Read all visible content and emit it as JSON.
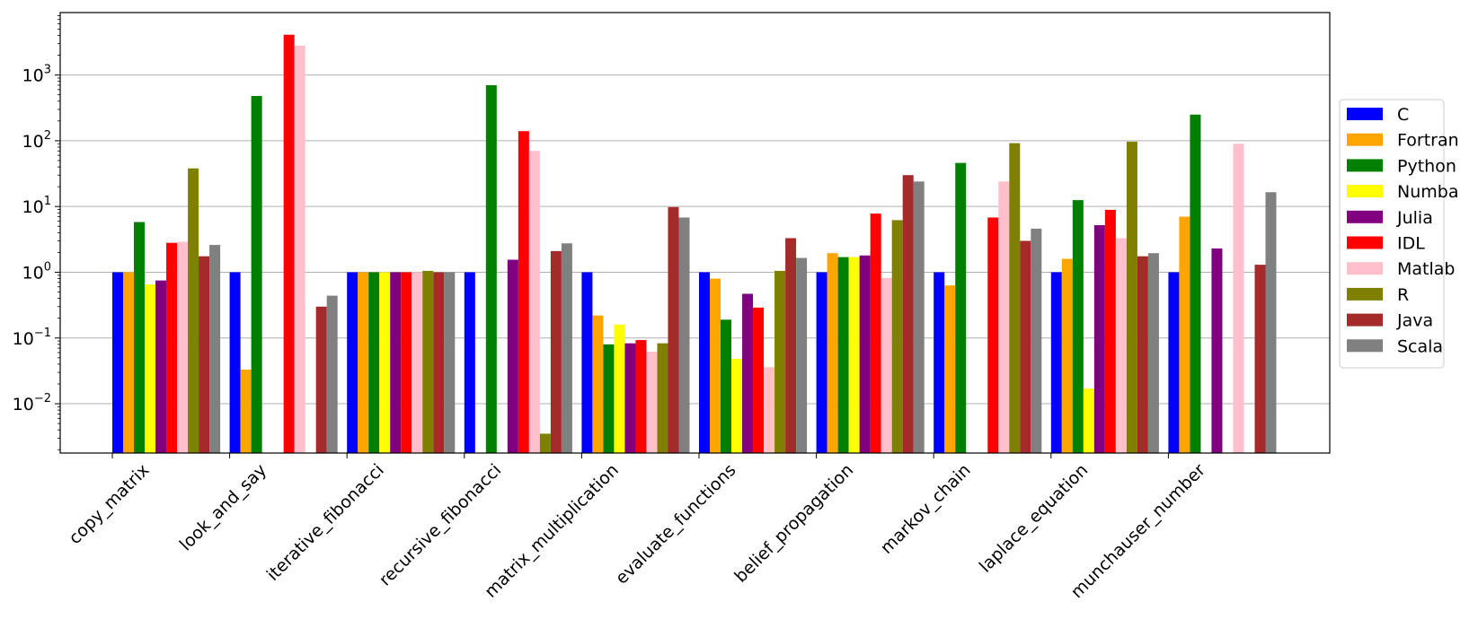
{
  "chart_data": {
    "type": "bar",
    "yscale": "log",
    "ylim_exponents": [
      -2.75,
      3.95
    ],
    "ytick_base": "10",
    "yticks": [
      {
        "base": "10",
        "exp": "−2",
        "value": 0.01
      },
      {
        "base": "10",
        "exp": "−1",
        "value": 0.1
      },
      {
        "base": "10",
        "exp": "0",
        "value": 1
      },
      {
        "base": "10",
        "exp": "1",
        "value": 10
      },
      {
        "base": "10",
        "exp": "2",
        "value": 100
      },
      {
        "base": "10",
        "exp": "3",
        "value": 1000
      }
    ],
    "grid": "horizontal major gridlines",
    "legend_position": "right, outside plot",
    "categories": [
      "copy_matrix",
      "look_and_say",
      "iterative_fibonacci",
      "recursive_fibonacci",
      "matrix_multiplication",
      "evaluate_functions",
      "belief_propagation",
      "markov_chain",
      "laplace_equation",
      "munchauser_number"
    ],
    "series": [
      {
        "name": "C",
        "color": "#0000ff",
        "values": [
          1,
          1,
          1,
          1,
          1,
          1,
          1,
          1,
          1,
          1
        ]
      },
      {
        "name": "Fortran",
        "color": "#ffa500",
        "values": [
          1.0,
          0.033,
          1.0,
          null,
          0.22,
          0.8,
          1.95,
          0.63,
          1.6,
          7.0
        ]
      },
      {
        "name": "Python",
        "color": "#008000",
        "values": [
          5.8,
          480,
          1.0,
          700,
          0.08,
          0.19,
          1.7,
          46,
          12.5,
          250
        ]
      },
      {
        "name": "Numba",
        "color": "#ffff00",
        "values": [
          0.65,
          null,
          1.0,
          null,
          0.16,
          0.048,
          1.7,
          null,
          0.017,
          null
        ]
      },
      {
        "name": "Julia",
        "color": "#800080",
        "values": [
          0.75,
          null,
          1.0,
          1.55,
          0.083,
          0.47,
          1.8,
          null,
          5.2,
          2.3
        ]
      },
      {
        "name": "IDL",
        "color": "#ff0000",
        "values": [
          2.8,
          4100,
          1.0,
          140,
          0.093,
          0.29,
          7.8,
          6.8,
          8.9,
          null
        ]
      },
      {
        "name": "Matlab",
        "color": "#ffc0cb",
        "values": [
          2.9,
          2800,
          1.0,
          70,
          0.062,
          0.036,
          0.82,
          24,
          3.3,
          90
        ]
      },
      {
        "name": "R",
        "color": "#808000",
        "values": [
          38,
          null,
          1.05,
          0.0035,
          0.083,
          1.05,
          6.2,
          92,
          97,
          null
        ]
      },
      {
        "name": "Java",
        "color": "#a52a2a",
        "values": [
          1.75,
          0.3,
          1.0,
          2.1,
          9.8,
          3.3,
          30,
          3.0,
          1.75,
          1.3
        ]
      },
      {
        "name": "Scala",
        "color": "#808080",
        "values": [
          2.6,
          0.44,
          1.0,
          2.75,
          6.8,
          1.65,
          24,
          4.6,
          1.95,
          16.5
        ]
      }
    ]
  }
}
